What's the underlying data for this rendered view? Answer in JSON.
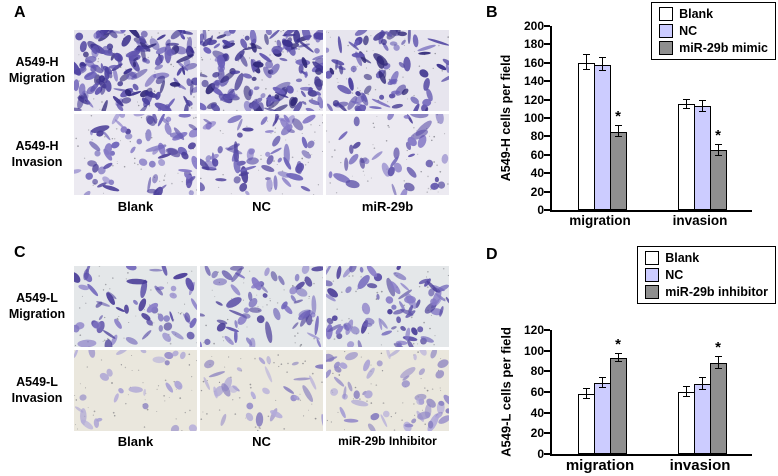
{
  "panels": {
    "A": {
      "label": "A",
      "rows": [
        {
          "label": "A549-H Migration"
        },
        {
          "label": "A549-H Invasion"
        }
      ],
      "cols": [
        {
          "label": "Blank"
        },
        {
          "label": "NC"
        },
        {
          "label": "miR-29b"
        }
      ]
    },
    "B": {
      "label": "B"
    },
    "C": {
      "label": "C",
      "rows": [
        {
          "label": "A549-L Migration"
        },
        {
          "label": "A549-L Invasion"
        }
      ],
      "cols": [
        {
          "label": "Blank"
        },
        {
          "label": "NC"
        },
        {
          "label": "miR-29b Inhibitor"
        }
      ]
    },
    "D": {
      "label": "D"
    }
  },
  "chart_data": [
    {
      "type": "bar",
      "panel": "B",
      "title": "",
      "ylabel": "A549-H cells per field",
      "ylim": [
        0,
        200
      ],
      "ytick_step": 20,
      "categories": [
        "migration",
        "invasion"
      ],
      "series": [
        {
          "name": "Blank",
          "color": "#ffffff",
          "values": [
            160,
            115
          ],
          "errors": [
            8,
            5
          ]
        },
        {
          "name": "NC",
          "color": "#ccccff",
          "values": [
            158,
            113
          ],
          "errors": [
            7,
            6
          ]
        },
        {
          "name": "miR-29b mimic",
          "color": "#8f8f8f",
          "values": [
            85,
            65
          ],
          "errors": [
            6,
            6
          ],
          "sig": [
            "*",
            "*"
          ]
        }
      ],
      "legend_position": "top-right",
      "grid": false
    },
    {
      "type": "bar",
      "panel": "D",
      "title": "",
      "ylabel": "A549-L cells per field",
      "ylim": [
        0,
        120
      ],
      "ytick_step": 20,
      "categories": [
        "migration",
        "invasion"
      ],
      "series": [
        {
          "name": "Blank",
          "color": "#ffffff",
          "values": [
            58,
            60
          ],
          "errors": [
            5,
            5
          ]
        },
        {
          "name": "NC",
          "color": "#ccccff",
          "values": [
            69,
            68
          ],
          "errors": [
            5,
            6
          ]
        },
        {
          "name": "miR-29b inhibitor",
          "color": "#8f8f8f",
          "values": [
            93,
            88
          ],
          "errors": [
            4,
            6
          ],
          "sig": [
            "*",
            "*"
          ]
        }
      ],
      "legend_position": "top-right",
      "grid": false
    }
  ]
}
